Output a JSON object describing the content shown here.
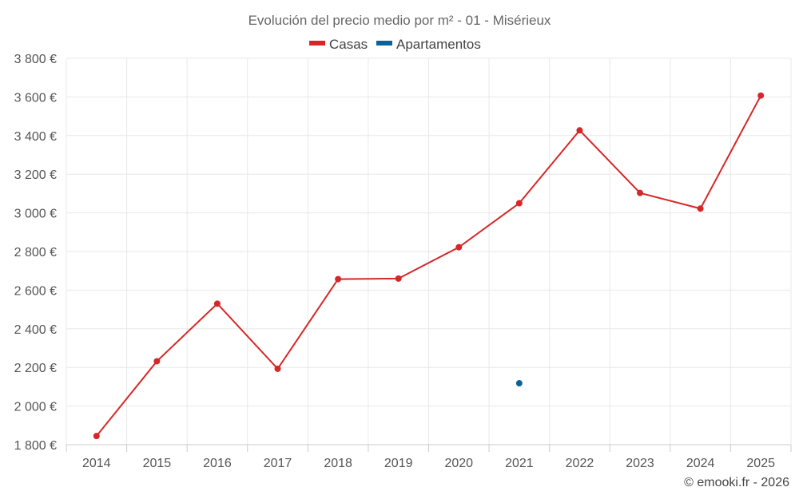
{
  "chart_data": {
    "type": "line",
    "title": "Evolución del precio medio por m² - 01 - Misérieux",
    "categories": [
      "2014",
      "2015",
      "2016",
      "2017",
      "2018",
      "2019",
      "2020",
      "2021",
      "2022",
      "2023",
      "2024",
      "2025"
    ],
    "ylim": [
      1800,
      3800
    ],
    "yticks": [
      1800,
      2000,
      2200,
      2400,
      2600,
      2800,
      3000,
      3200,
      3400,
      3600,
      3800
    ],
    "ytick_labels": [
      "1 800 €",
      "2 000 €",
      "2 200 €",
      "2 400 €",
      "2 600 €",
      "2 800 €",
      "3 000 €",
      "3 200 €",
      "3 400 €",
      "3 600 €",
      "3 800 €"
    ],
    "grid": true,
    "legend_position": "top-center",
    "series": [
      {
        "name": "Casas",
        "color": "#d62728",
        "values": [
          1845,
          2232,
          2530,
          2193,
          2657,
          2660,
          2822,
          3050,
          3427,
          3103,
          3022,
          3607
        ]
      },
      {
        "name": "Apartamentos",
        "color": "#0b6299",
        "values": [
          null,
          null,
          null,
          null,
          null,
          null,
          null,
          2118,
          null,
          null,
          null,
          null
        ]
      }
    ]
  },
  "credit": "© emooki.fr - 2026"
}
